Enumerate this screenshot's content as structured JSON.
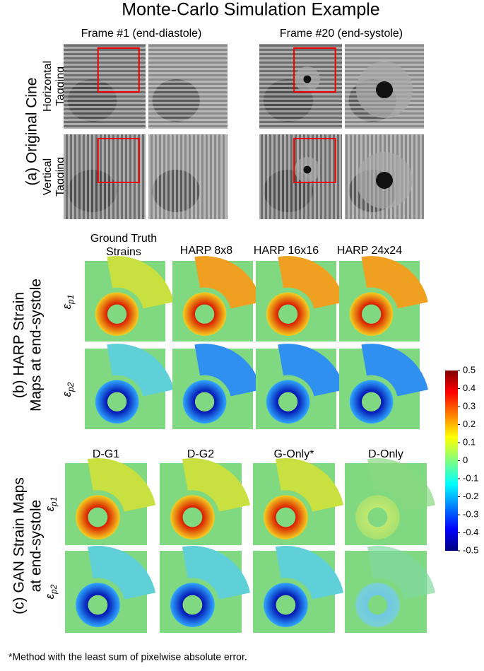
{
  "title": "Monte-Carlo Simulation Example",
  "original_cine": {
    "label": "(a) Original Cine",
    "frames": [
      "Frame #1 (end-diastole)",
      "Frame #20 (end-systole)"
    ],
    "rows": [
      [
        "Horizontal",
        "Tagging"
      ],
      [
        "Vertical",
        "Tagging"
      ]
    ]
  },
  "harp": {
    "label": [
      "(b) HARP Strain",
      "Maps at end-systole"
    ],
    "columns": [
      [
        "Ground Truth",
        "Strains"
      ],
      [
        "HARP 8x8"
      ],
      [
        "HARP 16x16"
      ],
      [
        "HARP 24x24"
      ]
    ]
  },
  "gan": {
    "label": [
      "(c) GAN Strain Maps",
      "at end-systole"
    ],
    "columns": [
      "D-G1",
      "D-G2",
      "G-Only*",
      "D-Only"
    ]
  },
  "strain_symbol": "ε",
  "strain_rows": [
    "p1",
    "p2"
  ],
  "colorbar": {
    "ticks": [
      0.5,
      0.4,
      0.3,
      0.2,
      0.1,
      0,
      -0.1,
      -0.2,
      -0.3,
      -0.4,
      -0.5
    ]
  },
  "footnote": "*Method with the least sum of pixelwise absolute error."
}
